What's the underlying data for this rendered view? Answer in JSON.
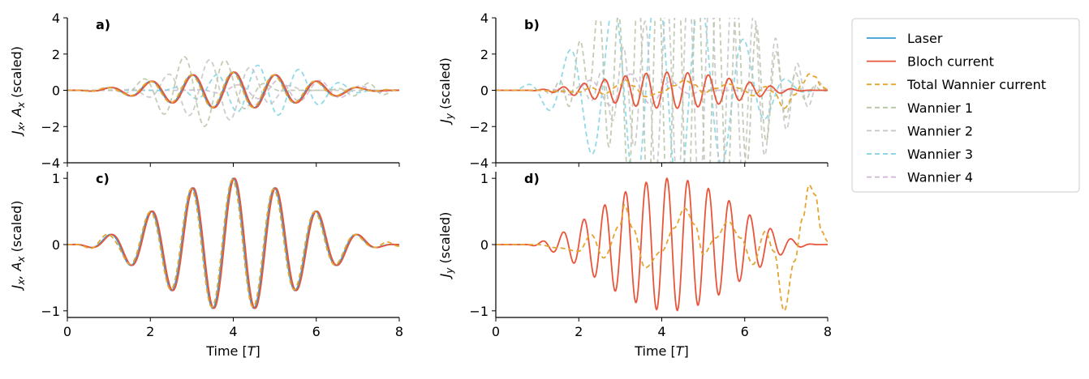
{
  "chart_data": {
    "type": "line",
    "x_range": [
      0,
      8
    ],
    "xlabel": "Time [T]",
    "xlabel_parts": {
      "prefix": "Time [",
      "italic": "T",
      "suffix": "]"
    },
    "xtick_values": [
      0,
      2,
      4,
      6,
      8
    ],
    "xtick_labels": [
      "0",
      "2",
      "4",
      "6",
      "8"
    ],
    "colors": {
      "laser": "#3A9BD0",
      "bloch": "#E8553A",
      "total_wannier": "#E5A531",
      "wannier1": "#B7C4A6",
      "wannier2": "#C4C4C4",
      "wannier3": "#7FD3E3",
      "wannier4": "#CDB6D3"
    },
    "legend": {
      "placement": "outside-right",
      "entries": [
        {
          "label": "Laser",
          "series": "laser",
          "style": "solid"
        },
        {
          "label": "Bloch current",
          "series": "bloch",
          "style": "solid"
        },
        {
          "label": "Total Wannier current",
          "series": "total_wannier",
          "style": "dashed"
        },
        {
          "label": "Wannier 1",
          "series": "wannier1",
          "style": "dashed"
        },
        {
          "label": "Wannier 2",
          "series": "wannier2",
          "style": "dashed"
        },
        {
          "label": "Wannier 3",
          "series": "wannier3",
          "style": "dashed"
        },
        {
          "label": "Wannier 4",
          "series": "wannier4",
          "style": "dashed"
        }
      ]
    },
    "laser_model": {
      "period_T": 1.0,
      "envelope_center": 4.0,
      "envelope_half_width": 4.0,
      "peak": 1.0
    },
    "y_current_model": {
      "frequency_ratio": 2.0,
      "envelope_center": 4.2,
      "envelope_half_width": 3.6,
      "peak": 1.0
    },
    "total_wannier_y_samples": {
      "x": [
        0,
        1,
        1.5,
        2.0,
        2.3,
        2.6,
        3.0,
        3.1,
        3.3,
        3.6,
        4.0,
        4.3,
        4.55,
        4.8,
        5.0,
        5.3,
        5.6,
        5.9,
        6.2,
        6.5,
        6.7,
        6.95,
        7.2,
        7.4,
        7.55,
        7.7,
        7.85,
        8.0
      ],
      "y": [
        0,
        0,
        -0.05,
        -0.1,
        0.15,
        -0.2,
        0.3,
        0.6,
        0.25,
        -0.35,
        -0.1,
        0.25,
        0.55,
        0.3,
        -0.15,
        0.1,
        0.35,
        0.1,
        -0.3,
        0.2,
        -0.1,
        -1.0,
        -0.25,
        0.4,
        0.9,
        0.75,
        0.2,
        0.05
      ]
    },
    "panels": [
      {
        "id": "a",
        "label": "a)",
        "ylabel": "Jx, Ax (scaled)",
        "ylabel_parts": [
          "J",
          "x",
          ", A",
          "x",
          " (scaled)"
        ],
        "ylim": [
          -4,
          4
        ],
        "ytick_values": [
          -4,
          -2,
          0,
          2,
          4
        ],
        "ytick_labels": [
          "−4",
          "−2",
          "0",
          "2",
          "4"
        ],
        "series": [
          "laser",
          "bloch",
          "total_wannier",
          "wannier1",
          "wannier2",
          "wannier3",
          "wannier4"
        ],
        "show_x_ticklabels": false
      },
      {
        "id": "b",
        "label": "b)",
        "ylabel": "Jy (scaled)",
        "ylabel_parts": [
          "J",
          "y",
          " (scaled)"
        ],
        "ylim": [
          -4,
          4
        ],
        "ytick_values": [
          -4,
          -2,
          0,
          2,
          4
        ],
        "ytick_labels": [
          "−4",
          "−2",
          "0",
          "2",
          "4"
        ],
        "series": [
          "bloch",
          "total_wannier",
          "wannier1",
          "wannier2",
          "wannier3",
          "wannier4"
        ],
        "show_x_ticklabels": false
      },
      {
        "id": "c",
        "label": "c)",
        "ylabel": "Jx, Ax (scaled)",
        "ylabel_parts": [
          "J",
          "x",
          ", A",
          "x",
          " (scaled)"
        ],
        "ylim": [
          -1.1,
          1.1
        ],
        "ytick_values": [
          -1,
          0,
          1
        ],
        "ytick_labels": [
          "−1",
          "0",
          "1"
        ],
        "series": [
          "laser",
          "bloch",
          "total_wannier"
        ],
        "show_x_ticklabels": true
      },
      {
        "id": "d",
        "label": "d)",
        "ylabel": "Jy (scaled)",
        "ylabel_parts": [
          "J",
          "y",
          " (scaled)"
        ],
        "ylim": [
          -1.1,
          1.1
        ],
        "ytick_values": [
          -1,
          0,
          1
        ],
        "ytick_labels": [
          "−1",
          "0",
          "1"
        ],
        "series": [
          "bloch",
          "total_wannier"
        ],
        "show_x_ticklabels": true
      }
    ]
  }
}
